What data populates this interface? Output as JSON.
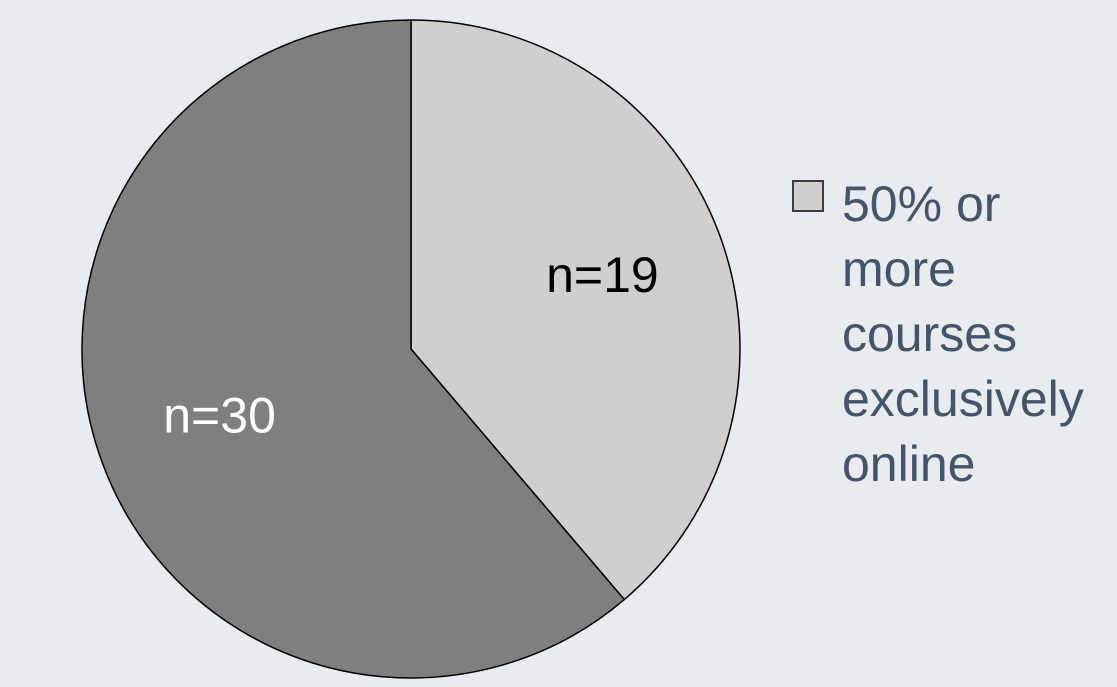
{
  "chart_data": {
    "type": "pie",
    "title": "",
    "slices": [
      {
        "label": "n=19",
        "value": 19,
        "color": "#d0cece",
        "legend": "50% or\nmore\ncourses\nexclusively\nonline"
      },
      {
        "label": "n=30",
        "value": 30,
        "color": "#7f7f7f",
        "legend": ""
      }
    ],
    "start_angle_deg": 0,
    "direction": "clockwise",
    "legend_position": "right",
    "border_color": "#000000"
  },
  "colors": {
    "background": "#e8ebf0",
    "legend_text": "#44546a",
    "swatch_border": "#3c3c3c"
  }
}
